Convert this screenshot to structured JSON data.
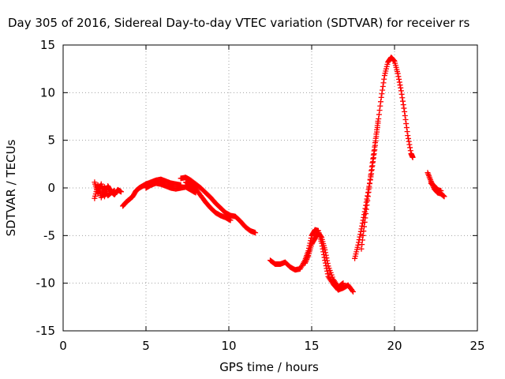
{
  "chart_data": {
    "type": "scatter",
    "title": "Day 305 of 2016, Sidereal Day-to-day VTEC variation (SDTVAR) for receiver rs",
    "xlabel": "GPS time / hours",
    "ylabel": "SDTVAR / TECUs",
    "xlim": [
      0,
      25
    ],
    "ylim": [
      -15,
      15
    ],
    "xticks": [
      0,
      5,
      10,
      15,
      20,
      25
    ],
    "yticks": [
      -15,
      -10,
      -5,
      0,
      5,
      10,
      15
    ],
    "xtick_labels": [
      "0",
      "5",
      "10",
      "15",
      "20",
      "25"
    ],
    "ytick_labels": [
      "-15",
      "-10",
      "-5",
      "0",
      "5",
      "10",
      "15"
    ],
    "grid": true,
    "legend": "none",
    "marker": "plus",
    "color": "#ff0000",
    "series": [
      {
        "name": "segment-1a",
        "x": [
          1.9,
          2.1,
          2.3,
          2.5,
          2.7,
          2.9,
          3.1,
          3.3,
          3.5
        ],
        "y": [
          0.6,
          -0.6,
          0.4,
          -0.9,
          0.2,
          -0.4,
          -0.7,
          -0.2,
          -0.4
        ]
      },
      {
        "name": "segment-1b",
        "x": [
          1.9,
          2.1,
          2.3,
          2.5,
          2.7,
          2.9,
          3.1
        ],
        "y": [
          -1.1,
          0.3,
          -1.0,
          0.1,
          -0.8,
          -0.5,
          -0.3
        ]
      },
      {
        "name": "segment-2",
        "x": [
          3.6,
          3.8,
          4.0,
          4.2,
          4.4,
          4.6,
          4.8,
          5.0,
          5.3,
          5.6,
          5.9,
          6.2,
          6.5,
          6.8,
          7.1
        ],
        "y": [
          -1.9,
          -1.5,
          -1.2,
          -0.9,
          -0.3,
          0.0,
          0.2,
          0.4,
          0.6,
          0.8,
          0.9,
          0.7,
          0.5,
          0.4,
          0.3
        ]
      },
      {
        "name": "segment-2b",
        "x": [
          5.0,
          5.3,
          5.6,
          5.9,
          6.2,
          6.5,
          6.8,
          7.1,
          7.4,
          7.7,
          8.0
        ],
        "y": [
          0.0,
          0.3,
          0.5,
          0.4,
          0.2,
          0.0,
          -0.1,
          0.0,
          0.1,
          -0.2,
          -0.5
        ]
      },
      {
        "name": "segment-3",
        "x": [
          7.1,
          7.4,
          7.7,
          8.0,
          8.3,
          8.6,
          8.9,
          9.2,
          9.5,
          9.8,
          10.1,
          10.4,
          10.7,
          11.0,
          11.3,
          11.6
        ],
        "y": [
          1.0,
          1.1,
          0.8,
          0.4,
          0.0,
          -0.5,
          -1.0,
          -1.6,
          -2.1,
          -2.6,
          -2.9,
          -3.0,
          -3.5,
          -4.1,
          -4.5,
          -4.7
        ]
      },
      {
        "name": "segment-3b",
        "x": [
          7.4,
          7.7,
          8.0,
          8.3,
          8.6,
          8.9,
          9.2,
          9.5,
          9.8,
          10.1
        ],
        "y": [
          0.6,
          0.3,
          -0.1,
          -0.8,
          -1.5,
          -2.1,
          -2.6,
          -2.9,
          -3.1,
          -3.4
        ]
      },
      {
        "name": "segment-4",
        "x": [
          12.5,
          12.8,
          13.1,
          13.4,
          13.7,
          14.0,
          14.3,
          14.6,
          14.8,
          15.0,
          15.2,
          15.4,
          15.6,
          15.8,
          16.0,
          16.3,
          16.6,
          16.9,
          17.2,
          17.5
        ],
        "y": [
          -7.6,
          -8.0,
          -8.0,
          -7.8,
          -8.3,
          -8.6,
          -8.5,
          -7.6,
          -6.6,
          -5.0,
          -4.4,
          -4.5,
          -5.8,
          -7.6,
          -9.3,
          -10.1,
          -10.7,
          -10.5,
          -10.2,
          -10.9
        ]
      },
      {
        "name": "segment-4b",
        "x": [
          14.6,
          14.8,
          15.0,
          15.2,
          15.4,
          15.6,
          15.8,
          16.0,
          16.3,
          16.6,
          16.9
        ],
        "y": [
          -7.9,
          -7.1,
          -5.9,
          -5.3,
          -4.7,
          -5.2,
          -6.5,
          -8.2,
          -9.6,
          -10.4,
          -10.0
        ]
      },
      {
        "name": "segment-5",
        "x": [
          17.6,
          17.8,
          18.0,
          18.2,
          18.4,
          18.6,
          18.8,
          19.0,
          19.2,
          19.4,
          19.6,
          19.8,
          20.0,
          20.2,
          20.4,
          20.6,
          20.8,
          21.0,
          21.1
        ],
        "y": [
          -7.4,
          -6.0,
          -4.3,
          -2.5,
          -0.5,
          1.5,
          4.0,
          6.8,
          9.5,
          11.8,
          13.2,
          13.7,
          13.3,
          12.0,
          10.2,
          8.0,
          5.5,
          3.6,
          3.2
        ]
      },
      {
        "name": "segment-5b",
        "x": [
          18.0,
          18.2,
          18.4,
          18.6,
          18.8,
          19.0
        ],
        "y": [
          -6.4,
          -3.6,
          -0.9,
          1.8,
          4.3,
          7.0
        ]
      },
      {
        "name": "segment-6",
        "x": [
          22.0,
          22.2,
          22.4,
          22.6,
          22.8,
          23.0
        ],
        "y": [
          1.6,
          0.7,
          -0.1,
          -0.5,
          -0.6,
          -0.9
        ]
      },
      {
        "name": "segment-6b",
        "x": [
          22.2,
          22.4,
          22.6,
          22.8
        ],
        "y": [
          0.5,
          0.2,
          -0.2,
          -0.3
        ]
      }
    ]
  }
}
